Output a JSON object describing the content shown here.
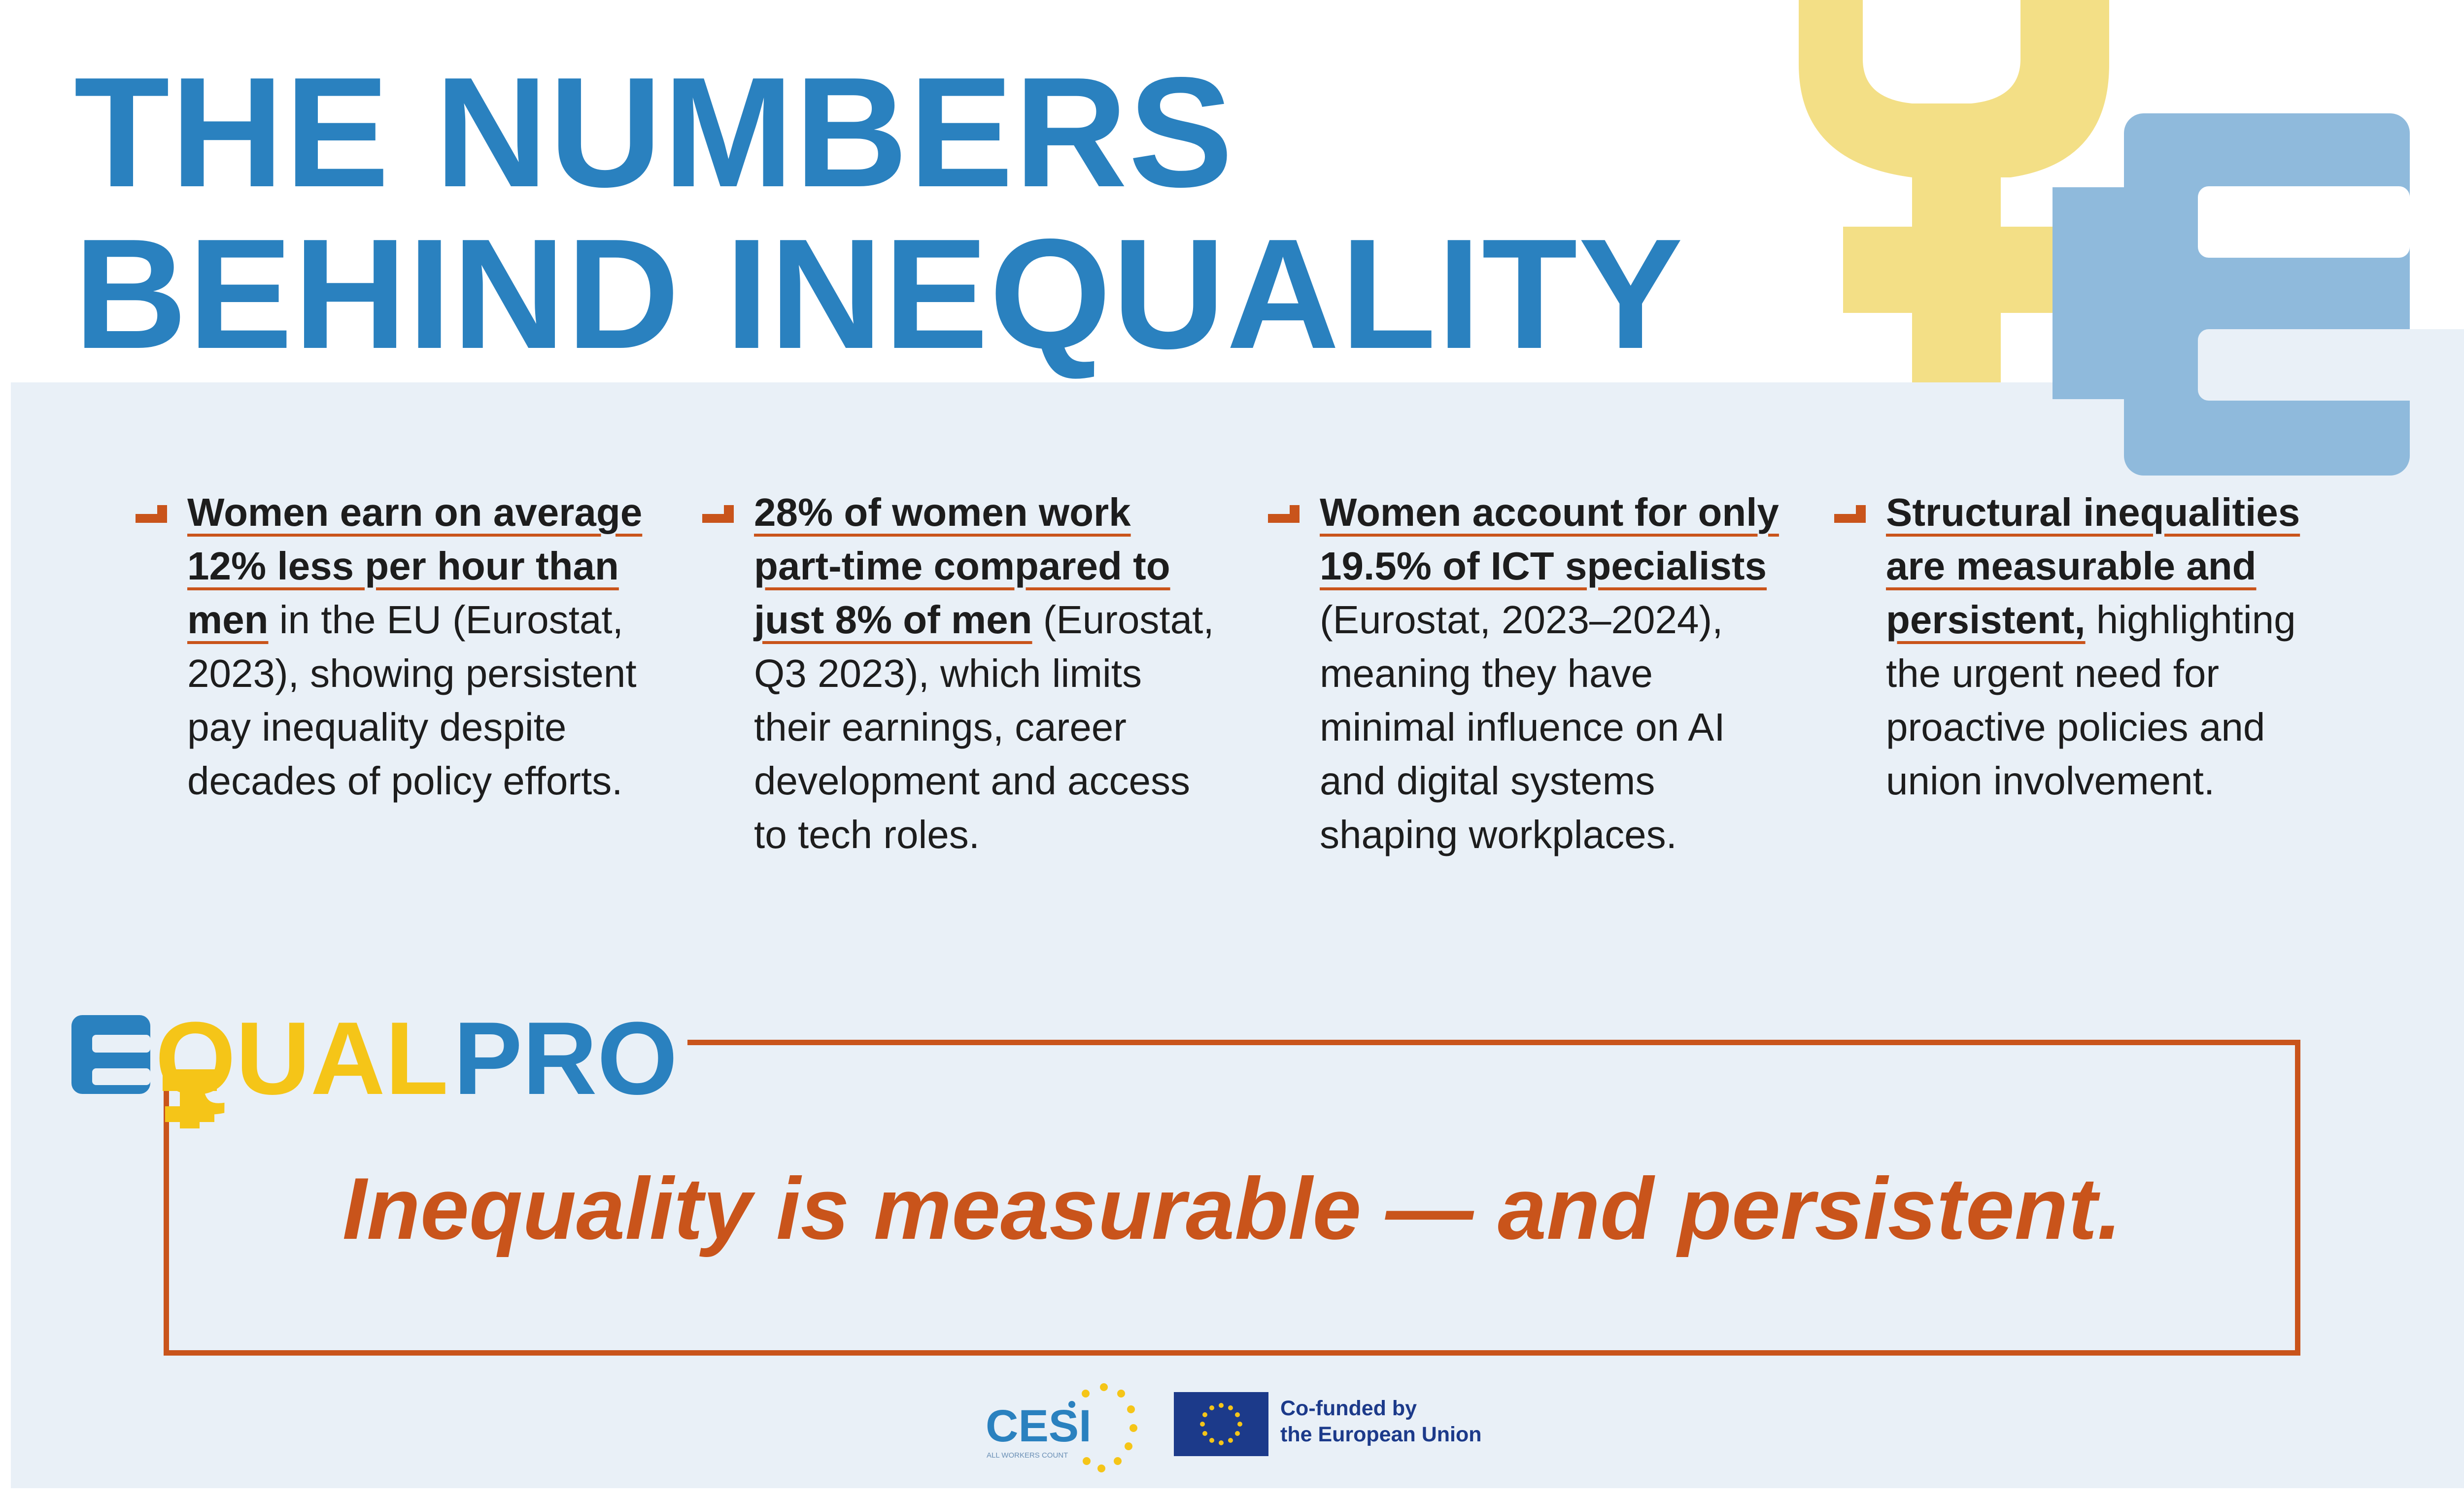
{
  "title": {
    "line1": "THE NUMBERS",
    "line2": "BEHIND INEQUALITY"
  },
  "columns": [
    {
      "highlight": "Women earn on average 12% less per hour than men",
      "body": " in the EU (Eurostat, 2023), showing persistent pay inequality despite decades of policy efforts."
    },
    {
      "highlight": "28% of women work part-time compared to just 8% of men",
      "body": " (Eurostat, Q3 2023), which limits their earnings, career development and access to tech roles."
    },
    {
      "highlight": "Women account for only 19.5% of ICT specialists",
      "body": " (Eurostat, 2023–2024), meaning they have minimal influence on AI and digital systems shaping workplaces."
    },
    {
      "highlight": "Structural inequalities are measurable and persistent,",
      "body": " highlighting the urgent need for proactive policies and union involvement."
    }
  ],
  "logo": {
    "part1": "QUAL",
    "part2": "PRO"
  },
  "quote": "Inequality is measurable — and persistent.",
  "footer": {
    "cesi_name": "CESI",
    "cesi_tagline": "ALL WORKERS COUNT",
    "cofund_line1": "Co-funded by",
    "cofund_line2": "the European Union"
  },
  "colors": {
    "blue": "#2a81bf",
    "light_blue": "#8fbadc",
    "yellow": "#f5c518",
    "light_yellow": "#f3df86",
    "orange": "#c9541b",
    "panel": "#e9f0f7",
    "eu_blue": "#1c3a8a"
  }
}
